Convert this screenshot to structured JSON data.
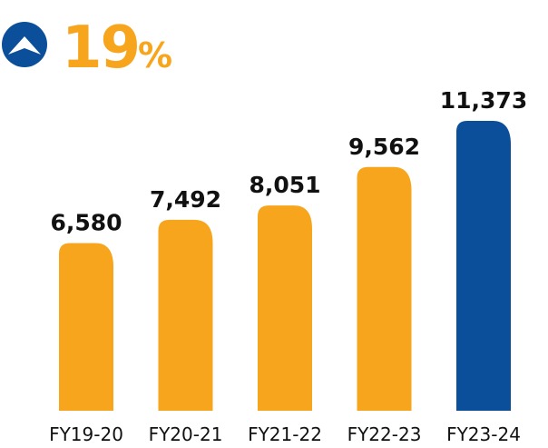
{
  "colors": {
    "accent": "#F7A51C",
    "highlight": "#0B4E9A",
    "text": "#111111"
  },
  "growth": {
    "icon": "arrow-up-icon",
    "value": "19",
    "unit": "%"
  },
  "chart_data": {
    "type": "bar",
    "categories": [
      "FY19-20",
      "FY20-21",
      "FY21-22",
      "FY22-23",
      "FY23-24"
    ],
    "values": [
      6580,
      7492,
      8051,
      9562,
      11373
    ],
    "value_labels": [
      "6,580",
      "7,492",
      "8,051",
      "9,562",
      "11,373"
    ],
    "highlight_index": 4,
    "ylim": [
      0,
      11373
    ],
    "grid": false,
    "xlabel": "",
    "ylabel": ""
  }
}
